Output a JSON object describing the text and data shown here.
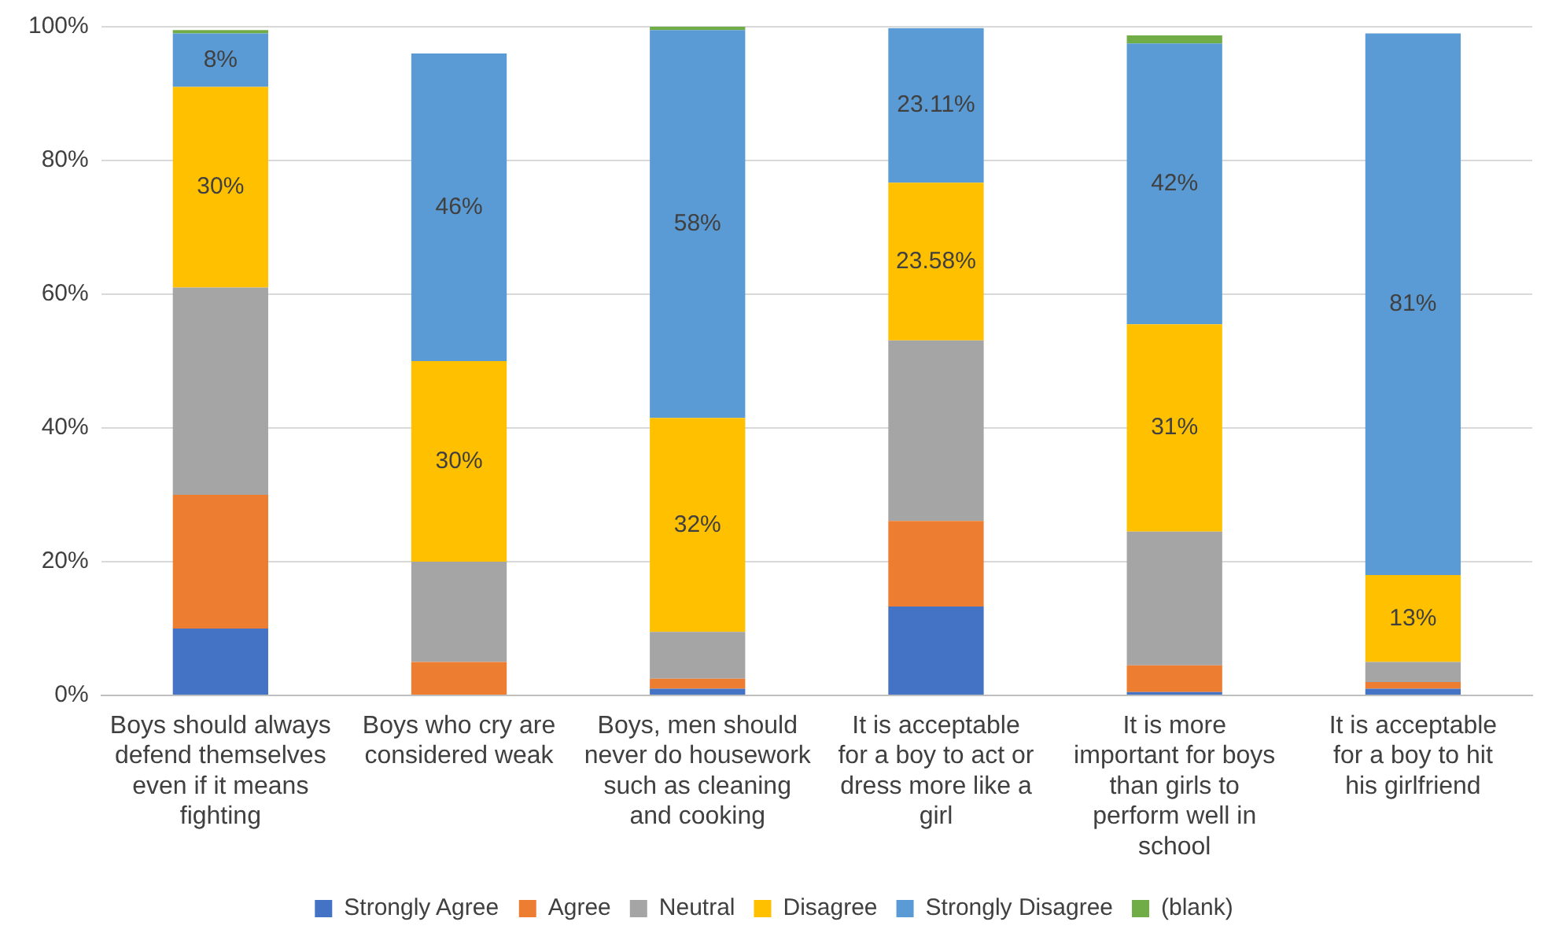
{
  "chart_data": {
    "type": "bar",
    "stacked": true,
    "categories": [
      "Boys should always defend themselves even if it means fighting",
      "Boys who cry are considered weak",
      "Boys, men should never do housework such as cleaning and cooking",
      "It is acceptable for a boy to act or dress more like a girl",
      "It is more important for boys than girls to perform well in school",
      "It is acceptable for a boy to hit his girlfriend"
    ],
    "series": [
      {
        "name": "Strongly Agree",
        "color": "#4472c4",
        "values": [
          10,
          0,
          1,
          13.3,
          0.5,
          1
        ]
      },
      {
        "name": "Agree",
        "color": "#ed7d31",
        "values": [
          20,
          5,
          1.5,
          12.8,
          4,
          1
        ]
      },
      {
        "name": "Neutral",
        "color": "#a5a5a5",
        "values": [
          31,
          15,
          7,
          27,
          20,
          3
        ]
      },
      {
        "name": "Disagree",
        "color": "#ffc000",
        "values": [
          30,
          30,
          32,
          23.58,
          31,
          13
        ],
        "value_labels": [
          "30%",
          "30%",
          "32%",
          "23.58%",
          "31%",
          "13%"
        ]
      },
      {
        "name": "Strongly Disagree",
        "color": "#5b9bd5",
        "values": [
          8,
          46,
          58,
          23.11,
          42,
          81
        ],
        "value_labels": [
          "8%",
          "46%",
          "58%",
          "23.11%",
          "42%",
          "81%"
        ]
      },
      {
        "name": "(blank)",
        "color": "#70ad47",
        "values": [
          0.5,
          0,
          0.5,
          0,
          1.2,
          0
        ]
      }
    ],
    "ylim": [
      0,
      100
    ],
    "yticks": [
      {
        "value": 0,
        "label": "0%"
      },
      {
        "value": 20,
        "label": "20%"
      },
      {
        "value": 40,
        "label": "40%"
      },
      {
        "value": 60,
        "label": "60%"
      },
      {
        "value": 80,
        "label": "80%"
      },
      {
        "value": 100,
        "label": "100%"
      }
    ],
    "grid": "y",
    "legend": "bottom"
  }
}
